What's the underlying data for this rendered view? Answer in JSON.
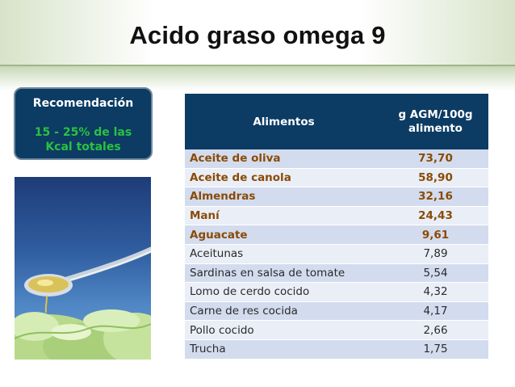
{
  "slide": {
    "title": "Acido graso omega 9"
  },
  "recommendation": {
    "title": "Recomendación",
    "value_line1": "15 - 25% de las",
    "value_line2": "Kcal totales"
  },
  "table": {
    "headers": {
      "food": "Alimentos",
      "amount_line1": "g AGM/100g",
      "amount_line2": "alimento"
    },
    "rows": [
      {
        "food": "Aceite de oliva",
        "amount": "73,70"
      },
      {
        "food": "Aceite de canola",
        "amount": "58,90"
      },
      {
        "food": "Almendras",
        "amount": "32,16"
      },
      {
        "food": "Maní",
        "amount": "24,43"
      },
      {
        "food": "Aguacate",
        "amount": "9,61"
      },
      {
        "food": "Aceitunas",
        "amount": "7,89"
      },
      {
        "food": "Sardinas en salsa de tomate",
        "amount": "5,54"
      },
      {
        "food": "Lomo de cerdo cocido",
        "amount": "4,32"
      },
      {
        "food": "Carne de res cocida",
        "amount": "4,17"
      },
      {
        "food": "Pollo cocido",
        "amount": "2,66"
      },
      {
        "food": "Trucha",
        "amount": "1,75"
      }
    ]
  },
  "colors": {
    "navy": "#0c3b63",
    "highlight_text": "#8a4b05",
    "recommendation_value": "#29c241",
    "row_dark": "#d3dcee",
    "row_light": "#eaeef7"
  }
}
